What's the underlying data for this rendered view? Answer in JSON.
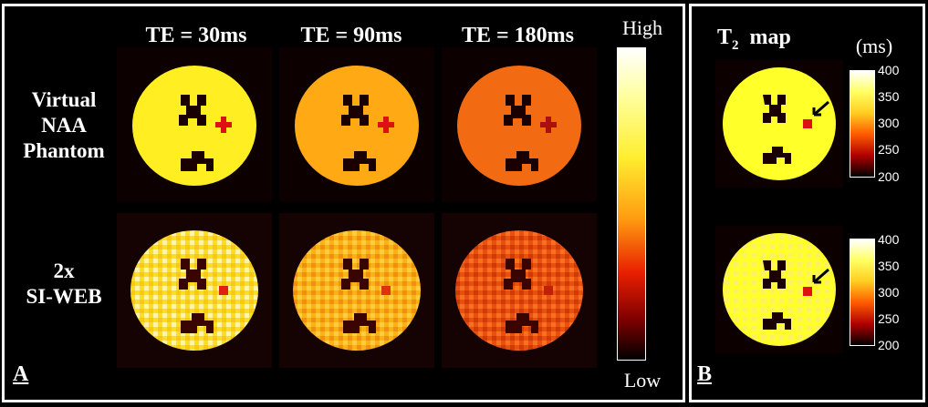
{
  "panel_a": {
    "letter": "A",
    "columns": [
      "TE = 30ms",
      "TE = 90ms",
      "TE = 180ms"
    ],
    "rows": [
      {
        "label_lines": [
          "Virtual",
          "NAA",
          "Phantom"
        ]
      },
      {
        "label_lines": [
          "2x",
          "SI-WEB"
        ]
      }
    ],
    "colorbar": {
      "high_label": "High",
      "low_label": "Low"
    }
  },
  "panel_b": {
    "letter": "B",
    "title_main": "T",
    "title_sub": "2",
    "title_rest": "  map",
    "unit_label": "(ms)",
    "colorbar_ticks": [
      "400",
      "350",
      "300",
      "250",
      "200"
    ]
  },
  "colors": {
    "bg": "#000000",
    "te30_fill": "#ffee22",
    "te90_fill": "#ffaa14",
    "te180_fill": "#f26a12",
    "lesion": "#dd1111",
    "t2map_fill": "#ffff2a"
  }
}
